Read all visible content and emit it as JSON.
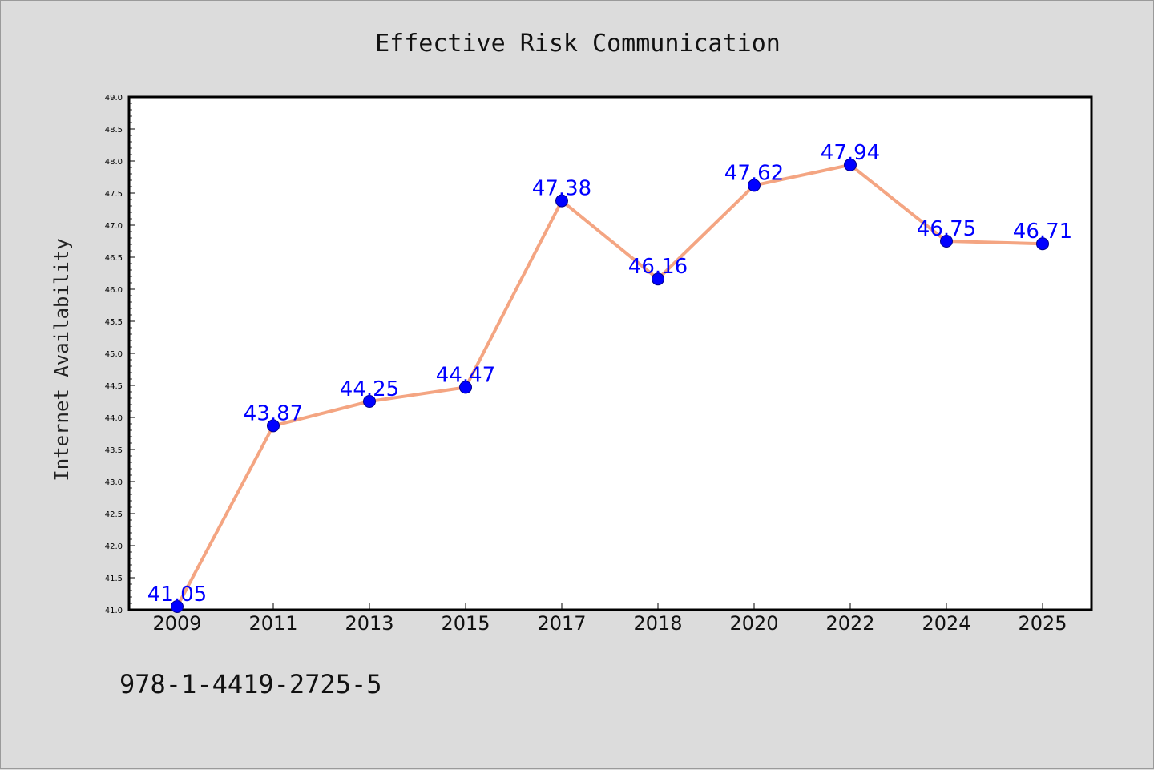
{
  "chart_data": {
    "type": "line",
    "title": "Effective Risk Communication",
    "xlabel": "",
    "ylabel": "Internet Availability",
    "categories": [
      "2009",
      "2011",
      "2013",
      "2015",
      "2017",
      "2018",
      "2020",
      "2022",
      "2024",
      "2025"
    ],
    "series": [
      {
        "values": [
          41.05,
          43.87,
          44.25,
          44.47,
          47.38,
          46.16,
          47.62,
          47.94,
          46.75,
          46.71
        ],
        "data_labels": [
          "41.05",
          "43.87",
          "44.25",
          "44.47",
          "47.38",
          "46.16",
          "47.62",
          "47.94",
          "46.75",
          "46.71"
        ],
        "line_color": "#f4a582",
        "marker_color": "#0000ff"
      }
    ],
    "ylim": [
      41.0,
      49.0
    ],
    "yticks": [
      "41.0",
      "41.5",
      "42.0",
      "42.5",
      "43.0",
      "43.5",
      "44.0",
      "44.5",
      "45.0",
      "45.5",
      "46.0",
      "46.5",
      "47.0",
      "47.5",
      "48.0",
      "48.5",
      "49.0"
    ],
    "grid": false,
    "legend": "none",
    "label_color": "#0000ff",
    "background": "#dcdcdc",
    "plot_background": "#ffffff"
  },
  "footer": {
    "text": "978-1-4419-2725-5"
  }
}
